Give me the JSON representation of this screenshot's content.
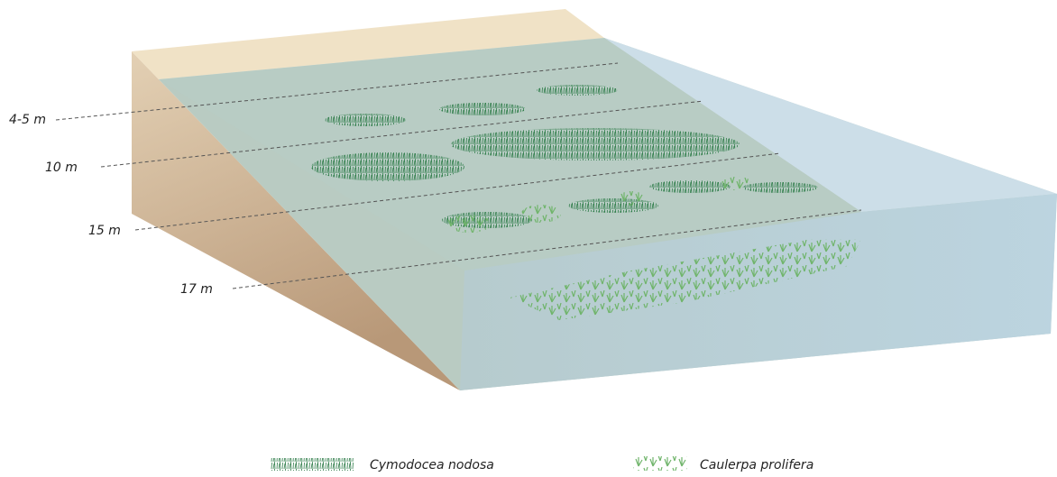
{
  "depth_labels": [
    "4-5 m",
    "10 m",
    "15 m",
    "17 m"
  ],
  "legend": [
    {
      "label": "Cymodocea nodosa"
    },
    {
      "label": "Caulerpa prolifera"
    }
  ]
}
